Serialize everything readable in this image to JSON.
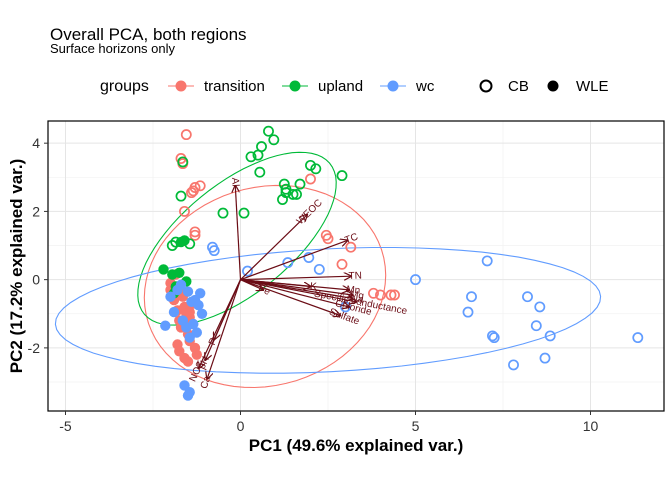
{
  "chart_data": {
    "type": "scatter",
    "title": "Overall PCA, both regions",
    "subtitle": "Surface horizons only",
    "xlabel": "PC1 (49.6% explained var.)",
    "ylabel": "PC2 (17.2% explained var.)",
    "xlim": [
      -5.5,
      12.1
    ],
    "ylim": [
      -3.85,
      4.65
    ],
    "x_ticks": [
      -5,
      0,
      5,
      10
    ],
    "y_ticks": [
      -2,
      0,
      2,
      4
    ],
    "grid": true,
    "legend_position": "top",
    "legend": {
      "color_title": "groups",
      "groups": [
        {
          "name": "transition",
          "color": "#F8766D"
        },
        {
          "name": "upland",
          "color": "#00BA38"
        },
        {
          "name": "wc",
          "color": "#619CFF"
        }
      ],
      "shapes": [
        {
          "name": "CB",
          "shape": "open-circle"
        },
        {
          "name": "WLE",
          "shape": "filled-circle"
        }
      ]
    },
    "ellipses": [
      {
        "group": "transition",
        "color": "#F8766D",
        "cx": 0.7,
        "cy": -0.2,
        "rx": 3.5,
        "ry": 2.9,
        "angle_deg": 18
      },
      {
        "group": "upland",
        "color": "#00BA38",
        "cx": -0.1,
        "cy": 1.2,
        "rx": 3.45,
        "ry": 1.6,
        "angle_deg": 40
      },
      {
        "group": "wc",
        "color": "#619CFF",
        "cx": 2.5,
        "cy": -0.9,
        "rx": 7.8,
        "ry": 1.8,
        "angle_deg": 3
      }
    ],
    "loadings": [
      {
        "name": "Al",
        "x": -0.15,
        "y": 2.75
      },
      {
        "name": "WEOC",
        "x": 1.9,
        "y": 1.9
      },
      {
        "name": "TC",
        "x": 3.05,
        "y": 1.15
      },
      {
        "name": "TN",
        "x": 3.15,
        "y": 0.1
      },
      {
        "name": "Mn",
        "x": 3.1,
        "y": -0.3
      },
      {
        "name": "Mg",
        "x": 3.2,
        "y": -0.45
      },
      {
        "name": "Na",
        "x": 3.2,
        "y": -0.55
      },
      {
        "name": "Specific.conductance",
        "x": 3.3,
        "y": -0.65
      },
      {
        "name": "Chloride",
        "x": 3.1,
        "y": -0.8
      },
      {
        "name": "Sulfate",
        "x": 2.85,
        "y": -1.05
      },
      {
        "name": "Fe",
        "x": 0.65,
        "y": -0.3
      },
      {
        "name": "K",
        "x": 2.0,
        "y": -0.2
      },
      {
        "name": "P",
        "x": -0.75,
        "y": -1.75
      },
      {
        "name": "Ca",
        "x": -0.95,
        "y": -2.9
      },
      {
        "name": "NO3",
        "x": -1.2,
        "y": -2.6
      },
      {
        "name": "pH",
        "x": -1.0,
        "y": -2.35
      }
    ],
    "series": [
      {
        "name": "transition",
        "shape": "CB",
        "color": "#F8766D",
        "x": [
          -1.55,
          -1.7,
          -1.65,
          -1.15,
          -1.3,
          -1.35,
          -1.4,
          -1.6,
          -1.3,
          -1.3,
          2.0,
          2.45,
          2.5,
          2.9,
          3.15,
          3.8,
          4.0,
          4.3,
          4.4
        ],
        "y": [
          4.25,
          3.55,
          3.4,
          2.75,
          2.7,
          2.6,
          2.55,
          2.0,
          1.4,
          1.3,
          2.95,
          1.3,
          1.2,
          0.45,
          0.95,
          -0.4,
          -0.45,
          -0.45,
          -0.45
        ]
      },
      {
        "name": "transition",
        "shape": "WLE",
        "color": "#F8766D",
        "x": [
          -2.0,
          -1.9,
          -1.8,
          -1.75,
          -1.7,
          -1.65,
          -1.6,
          -1.55,
          -1.5,
          -1.45,
          -1.4,
          -1.35,
          -1.3,
          -1.25,
          -2.0,
          -1.85,
          -1.6,
          -1.5,
          -1.45,
          -1.8,
          -1.6,
          -1.75,
          -1.45
        ],
        "y": [
          -0.3,
          -0.6,
          -0.9,
          -1.2,
          -1.4,
          -0.5,
          -0.8,
          -1.0,
          -1.6,
          -1.1,
          -1.3,
          -0.7,
          -2.0,
          -2.2,
          -0.1,
          0.15,
          -2.3,
          -2.4,
          -1.8,
          -1.9,
          -0.4,
          -2.1,
          -0.95
        ]
      },
      {
        "name": "upland",
        "shape": "CB",
        "color": "#00BA38",
        "x": [
          0.8,
          0.95,
          0.6,
          0.5,
          0.3,
          0.55,
          1.25,
          1.3,
          1.3,
          1.2,
          1.7,
          2.0,
          2.15,
          2.9,
          1.6,
          0.1,
          1.5,
          -0.5,
          -1.7,
          -1.65,
          -1.85,
          -1.95,
          -1.45
        ],
        "y": [
          4.35,
          4.1,
          3.9,
          3.65,
          3.6,
          3.15,
          2.8,
          2.65,
          2.55,
          2.35,
          2.8,
          3.35,
          3.25,
          3.05,
          2.5,
          1.95,
          2.5,
          1.95,
          2.45,
          3.45,
          1.1,
          1.0,
          1.05
        ]
      },
      {
        "name": "upland",
        "shape": "WLE",
        "color": "#00BA38",
        "x": [
          -2.2,
          -1.95,
          -1.7,
          -1.6,
          -1.55,
          -1.75,
          -1.9,
          -1.85
        ],
        "y": [
          0.3,
          0.15,
          1.1,
          1.15,
          -0.05,
          0.2,
          -0.4,
          -0.2
        ]
      },
      {
        "name": "wc",
        "shape": "CB",
        "color": "#619CFF",
        "x": [
          -0.8,
          -0.75,
          0.2,
          1.35,
          1.95,
          2.25,
          5.0,
          7.05,
          6.6,
          6.5,
          8.2,
          8.55,
          8.85,
          8.45,
          7.2,
          7.25,
          8.7,
          7.8,
          11.35,
          3.0
        ],
        "y": [
          0.95,
          0.85,
          0.25,
          0.5,
          0.65,
          0.3,
          0.0,
          0.55,
          -0.5,
          -0.95,
          -0.5,
          -0.8,
          -1.65,
          -1.35,
          -1.65,
          -1.7,
          -2.3,
          -2.5,
          -1.7,
          -0.8
        ]
      },
      {
        "name": "wc",
        "shape": "WLE",
        "color": "#619CFF",
        "x": [
          -2.0,
          -1.8,
          -1.7,
          -1.5,
          -1.4,
          -1.3,
          -1.2,
          -1.1,
          -1.9,
          -1.65,
          -1.55,
          -1.35,
          -2.15,
          -1.15,
          -1.25,
          -1.6,
          -1.5,
          -1.45,
          -1.45
        ],
        "y": [
          -0.5,
          -0.3,
          -0.15,
          -0.35,
          -0.65,
          -0.6,
          -0.75,
          -1.0,
          -0.95,
          -1.2,
          -1.4,
          -1.3,
          -1.35,
          -0.4,
          -1.55,
          -3.1,
          -3.4,
          -3.3,
          -1.7
        ]
      }
    ]
  }
}
